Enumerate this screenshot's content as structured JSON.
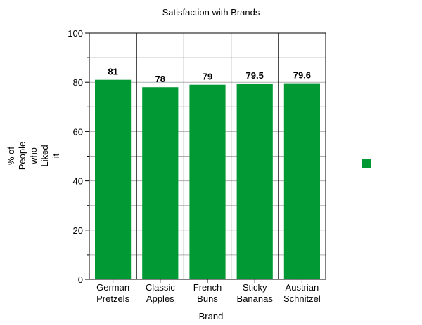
{
  "chart_data": {
    "type": "bar",
    "title": "Satisfaction with Brands",
    "xlabel": "Brand",
    "ylabel_lines": [
      "% of",
      "People",
      "who",
      "Liked",
      "it"
    ],
    "categories": [
      [
        "German",
        "Pretzels"
      ],
      [
        "Classic",
        "Apples"
      ],
      [
        "French",
        "Buns"
      ],
      [
        "Sticky",
        "Bananas"
      ],
      [
        "Austrian",
        "Schnitzel"
      ]
    ],
    "values": [
      81,
      78,
      79,
      79.5,
      79.6
    ],
    "value_labels": [
      "81",
      "78",
      "79",
      "79.5",
      "79.6"
    ],
    "ylim": [
      0,
      100
    ],
    "y_ticks": [
      0,
      20,
      40,
      60,
      80,
      100
    ],
    "grid": true,
    "legend_position": "right",
    "bar_color": "#009933"
  }
}
